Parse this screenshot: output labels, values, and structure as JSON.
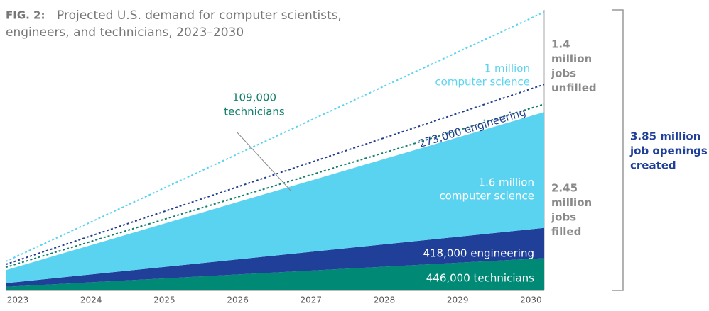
{
  "chart_data": {
    "type": "area",
    "title": {
      "label": "FIG. 2:",
      "lines": [
        "Projected U.S. demand for computer scientists,",
        "engineers, and technicians, 2023–2030"
      ]
    },
    "x": [
      2023,
      2030
    ],
    "xticks": [
      2023,
      2024,
      2025,
      2026,
      2027,
      2028,
      2029,
      2030
    ],
    "series": [
      {
        "color": "#008a76",
        "values": [
          50000,
          446000
        ],
        "label": "446,000 technicians"
      },
      {
        "color": "#1f3f99",
        "values": [
          50000,
          418000
        ],
        "label": "418,000 engineering"
      },
      {
        "color": "#5ad3f0",
        "values": [
          180000,
          1600000
        ],
        "label_lines": [
          "1.6 million",
          "computer science"
        ]
      }
    ],
    "unfilled_series": [
      {
        "color": "#13806b",
        "values": [
          40000,
          109000
        ],
        "label_lines": [
          "109,000",
          "technicians"
        ]
      },
      {
        "color": "#243e8f",
        "values": [
          40000,
          273000
        ],
        "label": "273,000 engineering"
      },
      {
        "color": "#5ad3f0",
        "values": [
          40000,
          1000000
        ],
        "label_lines": [
          "1 million",
          "computer science"
        ]
      }
    ],
    "annotations": {
      "unfilled": [
        "1.4",
        "million",
        "jobs",
        "unfilled"
      ],
      "filled": [
        "2.45",
        "million",
        "jobs",
        "filled"
      ],
      "total": [
        "3.85 million",
        "job openings",
        "created"
      ]
    }
  }
}
